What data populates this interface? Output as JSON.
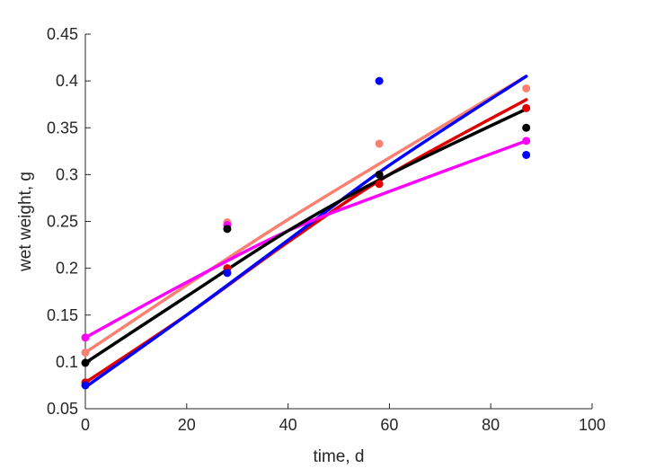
{
  "chart_data": {
    "type": "scatter",
    "xlabel": "time, d",
    "ylabel": "wet weight, g",
    "xlim": [
      0,
      100
    ],
    "ylim": [
      0.05,
      0.45
    ],
    "xticks": [
      0,
      20,
      40,
      60,
      80,
      100
    ],
    "xtick_labels": [
      "0",
      "20",
      "40",
      "60",
      "80",
      "100"
    ],
    "yticks": [
      0.05,
      0.1,
      0.15,
      0.2,
      0.25,
      0.3,
      0.35,
      0.4,
      0.45
    ],
    "ytick_labels": [
      "0.05",
      "0.1",
      "0.15",
      "0.2",
      "0.25",
      "0.3",
      "0.35",
      "0.4",
      "0.45"
    ],
    "grid": false,
    "legend": "none",
    "series": [
      {
        "color": "#fa8072",
        "points": [
          [
            0,
            0.11
          ],
          [
            28,
            0.249
          ],
          [
            58,
            0.333
          ],
          [
            87,
            0.392
          ]
        ],
        "fit": [
          [
            0,
            0.11
          ],
          [
            20,
            0.182
          ],
          [
            40,
            0.252
          ],
          [
            60,
            0.318
          ],
          [
            87,
            0.405
          ]
        ]
      },
      {
        "color": "#e00000",
        "points": [
          [
            0,
            0.078
          ],
          [
            28,
            0.2
          ],
          [
            58,
            0.29
          ],
          [
            87,
            0.371
          ]
        ],
        "fit": [
          [
            0,
            0.078
          ],
          [
            20,
            0.15
          ],
          [
            40,
            0.228
          ],
          [
            60,
            0.3
          ],
          [
            87,
            0.38
          ]
        ]
      },
      {
        "color": "#0000ff",
        "points": [
          [
            0,
            0.075
          ],
          [
            28,
            0.195
          ],
          [
            58,
            0.4
          ],
          [
            87,
            0.321
          ]
        ],
        "fit": [
          [
            0,
            0.073
          ],
          [
            20,
            0.15
          ],
          [
            40,
            0.23
          ],
          [
            60,
            0.31
          ],
          [
            87,
            0.405
          ]
        ]
      },
      {
        "color": "#ff00ff",
        "points": [
          [
            0,
            0.126
          ],
          [
            28,
            0.246
          ],
          [
            58,
            0.3
          ],
          [
            87,
            0.336
          ]
        ],
        "fit": [
          [
            0,
            0.126
          ],
          [
            20,
            0.185
          ],
          [
            40,
            0.24
          ],
          [
            60,
            0.282
          ],
          [
            87,
            0.336
          ]
        ]
      },
      {
        "color": "#000000",
        "points": [
          [
            0,
            0.099
          ],
          [
            28,
            0.242
          ],
          [
            58,
            0.3
          ],
          [
            87,
            0.35
          ]
        ],
        "fit": [
          [
            0,
            0.099
          ],
          [
            20,
            0.17
          ],
          [
            40,
            0.24
          ],
          [
            60,
            0.3
          ],
          [
            87,
            0.37
          ]
        ]
      }
    ]
  }
}
